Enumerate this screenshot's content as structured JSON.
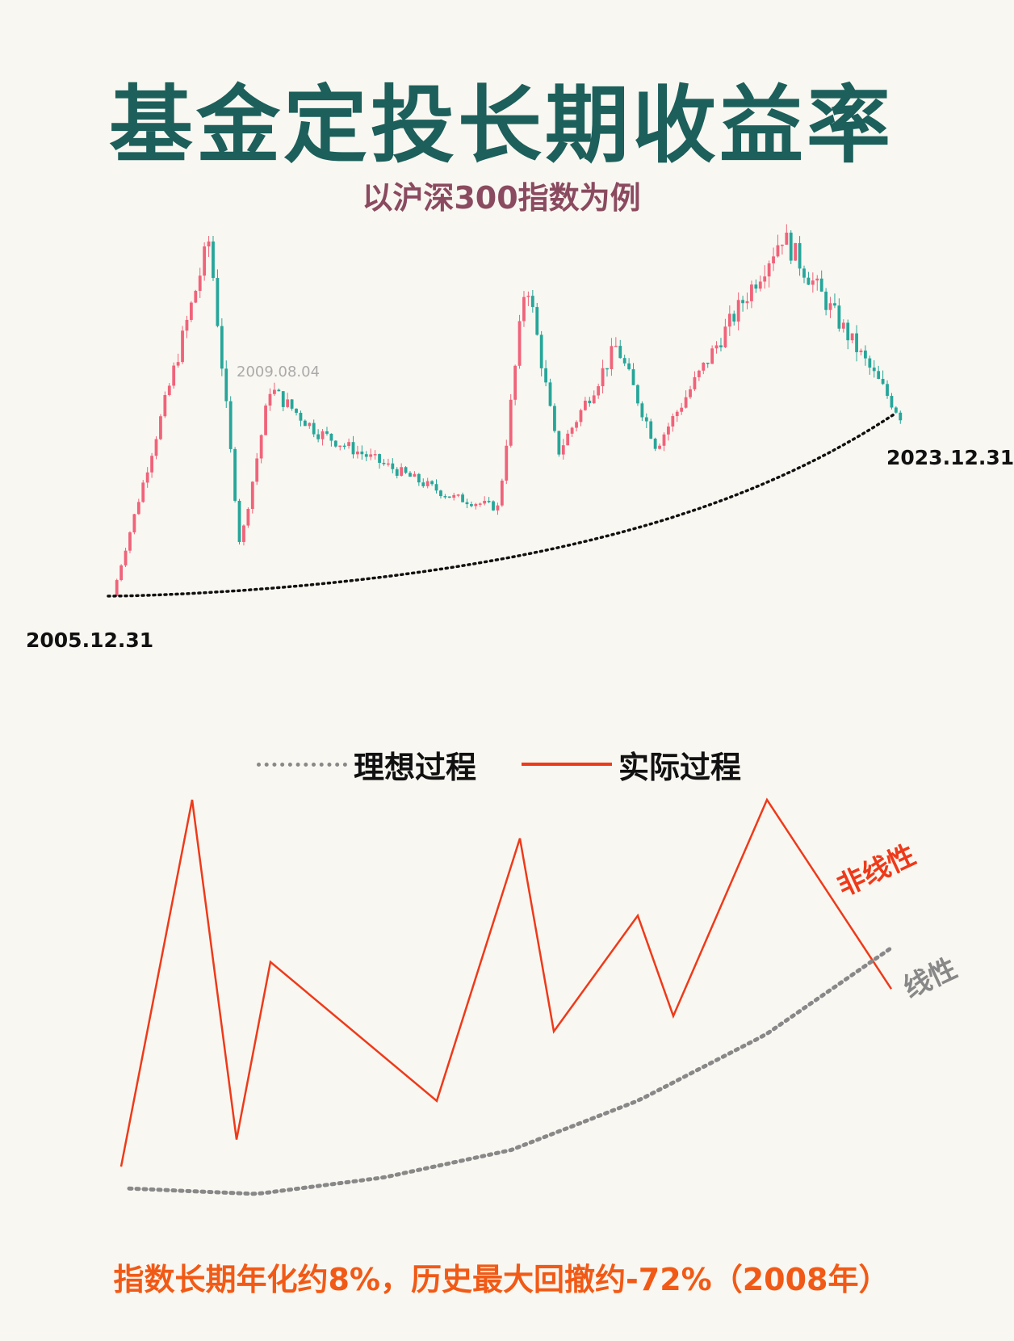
{
  "header": {
    "title": "基金定投长期收益率",
    "subtitle": "以沪深300指数为例"
  },
  "candle_chart": {
    "start_label": "2005.12.31",
    "end_label": "2023.12.31",
    "note_label": "2009.08.04"
  },
  "legend": {
    "ideal_label": "理想过程",
    "actual_label": "实际过程"
  },
  "tags": {
    "nonlinear": "非线性",
    "linear": "线性"
  },
  "footer": {
    "text": "指数长期年化约8%，历史最大回撤约-72%（2008年）"
  },
  "colors": {
    "title": "#1c5f5b",
    "subtitle": "#8a4a60",
    "up_candle": "#f0637a",
    "down_candle": "#26a69a",
    "actual_line": "#ee3a1a",
    "ideal_line": "#888888",
    "footer": "#f15a16"
  },
  "chart_data": [
    {
      "type": "candlestick",
      "series": [
        {
          "name": "沪深300",
          "x": [
            "2005.12.31",
            "2007.10",
            "2008.10",
            "2009.08.04",
            "2010",
            "2012",
            "2014.06",
            "2015.06",
            "2016.02",
            "2018.01",
            "2019.01",
            "2021.02",
            "2023.12.31"
          ],
          "values": [
            923,
            5877,
            1606,
            3806,
            3200,
            2300,
            2150,
            5380,
            2900,
            4400,
            3000,
            5930,
            3431
          ]
        },
        {
          "name": "理想过程",
          "x": [
            "2005.12.31",
            "2023.12.31"
          ],
          "values": [
            923,
            3431
          ]
        }
      ]
    },
    {
      "type": "line",
      "series": [
        {
          "name": "实际过程",
          "values": [
            0.05,
            1.0,
            0.12,
            0.58,
            0.22,
            0.9,
            0.4,
            0.7,
            0.44,
            1.0,
            0.51
          ]
        },
        {
          "name": "理想过程",
          "values": [
            0.01,
            0.0,
            0.03,
            0.08,
            0.17,
            0.29,
            0.45
          ]
        }
      ]
    }
  ]
}
